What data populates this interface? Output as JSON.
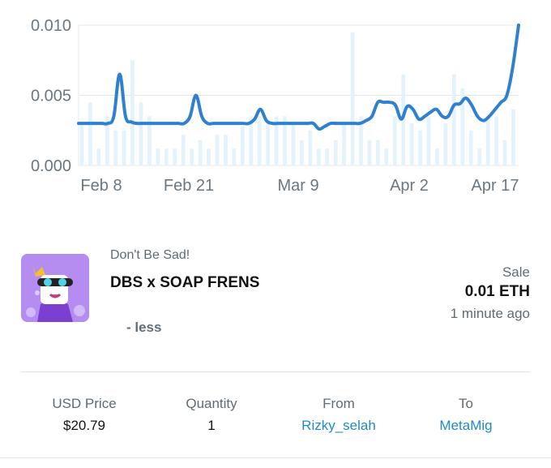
{
  "chart_data": {
    "type": "line",
    "y_ticks": [
      "0.010",
      "0.005",
      "0.000"
    ],
    "x_ticks": [
      "Feb 8",
      "Feb 21",
      "Mar 9",
      "Apr 2",
      "Apr 17"
    ],
    "ylim": [
      0,
      0.01
    ],
    "grid": true,
    "line": [
      0.003,
      0.003,
      0.003,
      0.003,
      0.003,
      0.003,
      0.0035,
      0.0065,
      0.0035,
      0.0031,
      0.003,
      0.003,
      0.003,
      0.003,
      0.003,
      0.003,
      0.003,
      0.003,
      0.003,
      0.0035,
      0.005,
      0.0035,
      0.003,
      0.003,
      0.003,
      0.003,
      0.003,
      0.003,
      0.003,
      0.003,
      0.0033,
      0.004,
      0.0032,
      0.003,
      0.003,
      0.003,
      0.003,
      0.003,
      0.003,
      0.003,
      0.003,
      0.0026,
      0.0028,
      0.003,
      0.003,
      0.003,
      0.003,
      0.003,
      0.003,
      0.0032,
      0.0035,
      0.0045,
      0.0045,
      0.0045,
      0.0043,
      0.0033,
      0.0042,
      0.004,
      0.0033,
      0.0035,
      0.0038,
      0.004,
      0.0035,
      0.0035,
      0.0043,
      0.0044,
      0.0048,
      0.0043,
      0.0035,
      0.0032,
      0.0035,
      0.004,
      0.0045,
      0.005,
      0.007,
      0.01
    ],
    "volume_bars": [
      0.003,
      0.0045,
      0.0012,
      0.0035,
      0.0025,
      0.0025,
      0.0075,
      0.0045,
      0.0035,
      0.0012,
      0.0012,
      0.0012,
      0.0022,
      0.0012,
      0.0018,
      0.0012,
      0.0022,
      0.0022,
      0.0012,
      0.0028,
      0.0035,
      0.0035,
      0.0032,
      0.0035,
      0.0035,
      0.003,
      0.0018,
      0.0025,
      0.0012,
      0.0012,
      0.0018,
      0.003,
      0.0095,
      0.0035,
      0.0018,
      0.0018,
      0.0012,
      0.0035,
      0.0065,
      0.003,
      0.0025,
      0.0035,
      0.0012,
      0.003,
      0.0065,
      0.0055,
      0.0025,
      0.0012,
      0.0035,
      0.0035,
      0.0018,
      0.004
    ]
  },
  "nft": {
    "collection": "Don't Be Sad!",
    "name": "DBS x SOAP FRENS",
    "toggle_label": "- less"
  },
  "event": {
    "type": "Sale",
    "price": "0.01 ETH",
    "time": "1 minute ago"
  },
  "details": {
    "usd_price_label": "USD Price",
    "usd_price_value": "$20.79",
    "quantity_label": "Quantity",
    "quantity_value": "1",
    "from_label": "From",
    "from_value": "Rizky_selah",
    "to_label": "To",
    "to_value": "MetaMig"
  },
  "colors": {
    "accent": "#1f8ac9",
    "line": "#2f80d0",
    "volume": "#e3f2fb"
  }
}
